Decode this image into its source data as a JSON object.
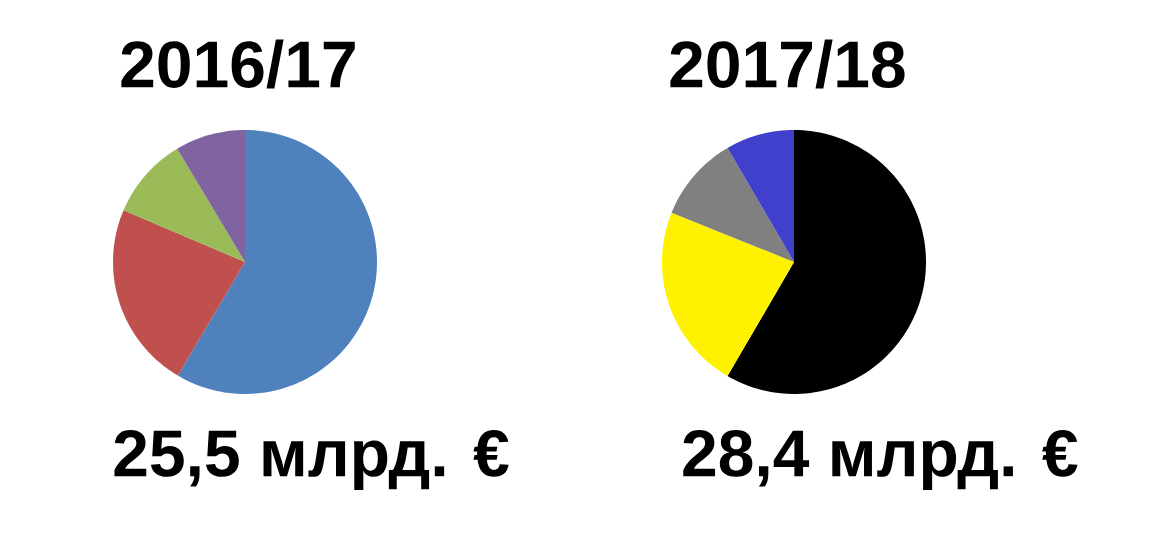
{
  "chart_data": [
    {
      "type": "pie",
      "title": "2016/17",
      "annotations": [
        "25,5 млрд. €"
      ],
      "categories": [
        null,
        null,
        null,
        null
      ],
      "values": [
        58.5,
        22.9,
        10.0,
        8.6
      ],
      "colors": [
        "#4f81bd",
        "#c0504d",
        "#9bbb59",
        "#8064a2"
      ]
    },
    {
      "type": "pie",
      "title": "2017/18",
      "annotations": [
        "28,4 млрд. €"
      ],
      "categories": [
        null,
        null,
        null,
        null
      ],
      "values": [
        58.4,
        22.7,
        10.5,
        8.4
      ],
      "colors": [
        "#000000",
        "#fff200",
        "#808080",
        "#4040cc"
      ]
    }
  ]
}
